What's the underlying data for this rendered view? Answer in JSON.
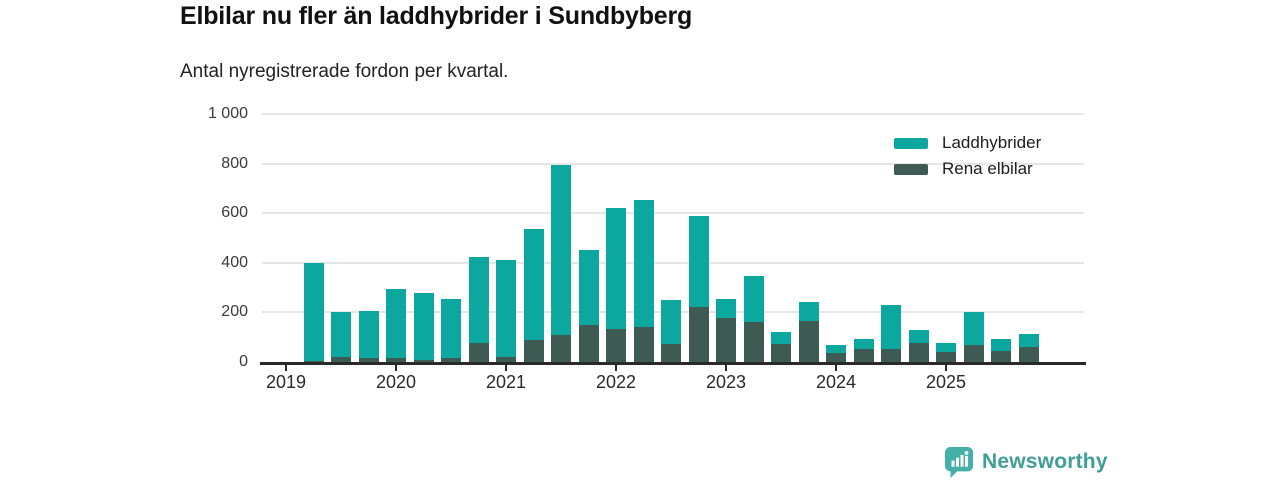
{
  "header": {
    "title": "Elbilar nu fler än laddhybrider i Sundbyberg",
    "subtitle": "Antal nyregistrerade fordon per kvartal."
  },
  "footer": {
    "brand": "Newsworthy"
  },
  "colors": {
    "laddhybrider": "#0ca89f",
    "rena_elbilar": "#3d5b53",
    "grid": "#e6e6e6",
    "axis": "#2a2a2a",
    "logo_icon": "#44b0a7",
    "logo_text": "#3f9e96"
  },
  "chart_data": {
    "type": "bar",
    "stacked": true,
    "title": "Elbilar nu fler än laddhybrider i Sundbyberg",
    "subtitle": "Antal nyregistrerade fordon per kvartal.",
    "ylabel": "",
    "xlabel": "",
    "ylim": [
      0,
      1000
    ],
    "grid": true,
    "legend_position": "top-right",
    "y_ticks": [
      0,
      200,
      400,
      600,
      800,
      1000
    ],
    "y_tick_labels": [
      "0",
      "200",
      "400",
      "600",
      "800",
      "1 000"
    ],
    "x_tick_labels": [
      "2019",
      "2020",
      "2021",
      "2022",
      "2023",
      "2024",
      "2025"
    ],
    "categories": [
      "2019 Q2",
      "2019 Q3",
      "2019 Q4",
      "2020 Q1",
      "2020 Q2",
      "2020 Q3",
      "2020 Q4",
      "2021 Q1",
      "2021 Q2",
      "2021 Q3",
      "2021 Q4",
      "2022 Q1",
      "2022 Q2",
      "2022 Q3",
      "2022 Q4",
      "2023 Q1",
      "2023 Q2",
      "2023 Q3",
      "2023 Q4",
      "2024 Q1",
      "2024 Q2",
      "2024 Q3",
      "2024 Q4",
      "2025 Q1",
      "2025 Q2",
      "2025 Q3",
      "2025 Q4"
    ],
    "series": [
      {
        "name": "Laddhybrider",
        "color": "#0ca89f",
        "values": [
          395,
          180,
          190,
          280,
          270,
          237,
          350,
          388,
          445,
          685,
          302,
          485,
          513,
          177,
          370,
          77,
          185,
          50,
          75,
          34,
          42,
          179,
          54,
          38,
          131,
          49,
          52
        ]
      },
      {
        "name": "Rena elbilar",
        "color": "#3d5b53",
        "values": [
          5,
          20,
          15,
          15,
          8,
          18,
          75,
          22,
          90,
          110,
          148,
          135,
          142,
          73,
          220,
          178,
          160,
          72,
          165,
          36,
          52,
          51,
          76,
          40,
          69,
          45,
          62
        ]
      }
    ]
  }
}
